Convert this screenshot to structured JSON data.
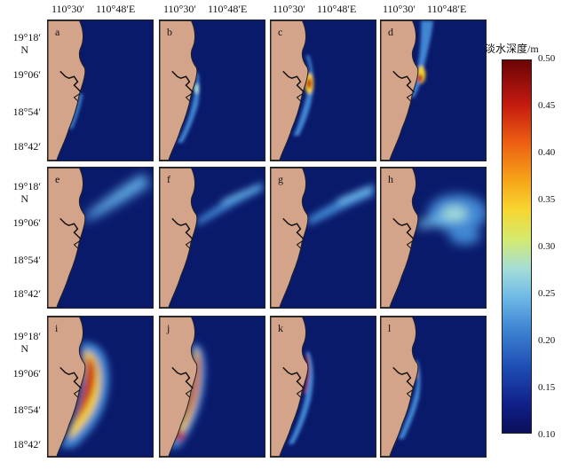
{
  "axes": {
    "lon_top": [
      {
        "col": 0,
        "labels": [
          "110°30′",
          "110°48′E"
        ]
      },
      {
        "col": 1,
        "labels": [
          "110°30′",
          "110°48′E"
        ]
      },
      {
        "col": 2,
        "labels": [
          "110°30′",
          "110°48′E"
        ]
      },
      {
        "col": 3,
        "labels": [
          "110°30′",
          "110°48′E"
        ]
      }
    ],
    "lat_left": [
      {
        "row": 0,
        "labels": [
          "19°18′",
          "N",
          "19°06′",
          "18°54′",
          "18°42′"
        ]
      },
      {
        "row": 1,
        "labels": [
          "19°18′",
          "N",
          "19°06′",
          "18°54′",
          "18°42′"
        ]
      },
      {
        "row": 2,
        "labels": [
          "19°18′",
          "N",
          "19°06′",
          "18°54′",
          "18°42′"
        ]
      }
    ]
  },
  "panels": [
    {
      "label": "a",
      "plume": "coastal-thin"
    },
    {
      "label": "b",
      "plume": "coastal-medium"
    },
    {
      "label": "c",
      "plume": "river-mouth-core"
    },
    {
      "label": "d",
      "plume": "coastal-north"
    },
    {
      "label": "e",
      "plume": "offshore-ne-wide"
    },
    {
      "label": "f",
      "plume": "offshore-ne-streak"
    },
    {
      "label": "g",
      "plume": "offshore-ne-streak-2"
    },
    {
      "label": "h",
      "plume": "offshore-east-large"
    },
    {
      "label": "i",
      "plume": "coastal-broad-strong"
    },
    {
      "label": "j",
      "plume": "coastal-south-strong"
    },
    {
      "label": "k",
      "plume": "coastal-moderate"
    },
    {
      "label": "l",
      "plume": "coastal-weak"
    }
  ],
  "colorbar": {
    "title": "淡水深度/m",
    "ticks": [
      "0.50",
      "0.45",
      "0.40",
      "0.35",
      "0.30",
      "0.25",
      "0.20",
      "0.15",
      "0.10"
    ],
    "min": 0.1,
    "max": 0.5
  },
  "colors": {
    "land": "#d3a489",
    "sea": "#0a1a6b",
    "coast": "#222222"
  }
}
